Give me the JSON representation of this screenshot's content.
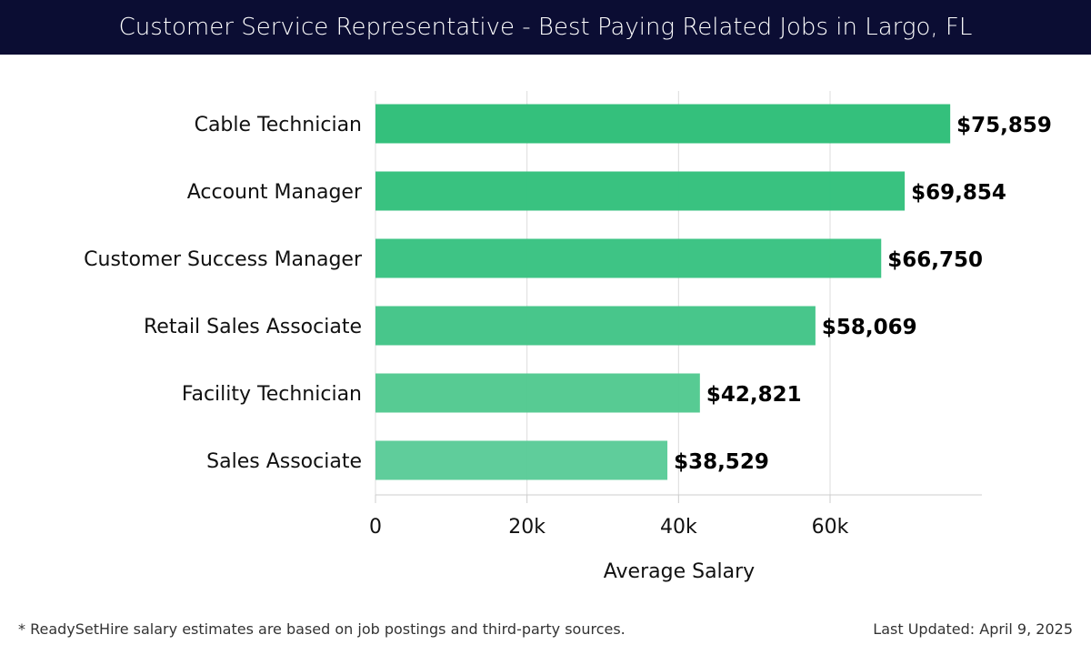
{
  "title": "Customer Service Representative - Best Paying Related Jobs in Largo, FL",
  "chart_data": {
    "type": "bar",
    "orientation": "horizontal",
    "categories": [
      "Cable Technician",
      "Account Manager",
      "Customer Success Manager",
      "Retail Sales Associate",
      "Facility Technician",
      "Sales Associate"
    ],
    "values": [
      75859,
      69854,
      66750,
      58069,
      42821,
      38529
    ],
    "data_labels": [
      "$75,859",
      "$69,854",
      "$66,750",
      "$58,069",
      "$42,821",
      "$38,529"
    ],
    "xlabel": "Average Salary",
    "ylabel": "",
    "xlim": [
      0,
      80000
    ],
    "xticks": [
      0,
      20000,
      40000,
      60000
    ],
    "xtick_labels": [
      "0",
      "20k",
      "40k",
      "60k"
    ],
    "grid": true,
    "colors": [
      "#2dbe78",
      "#33c07c",
      "#38c281",
      "#42c487",
      "#52c990",
      "#5acb98"
    ]
  },
  "footer": {
    "note": "* ReadySetHire salary estimates are based on job postings and third-party sources.",
    "updated": "Last Updated: April 9, 2025"
  }
}
